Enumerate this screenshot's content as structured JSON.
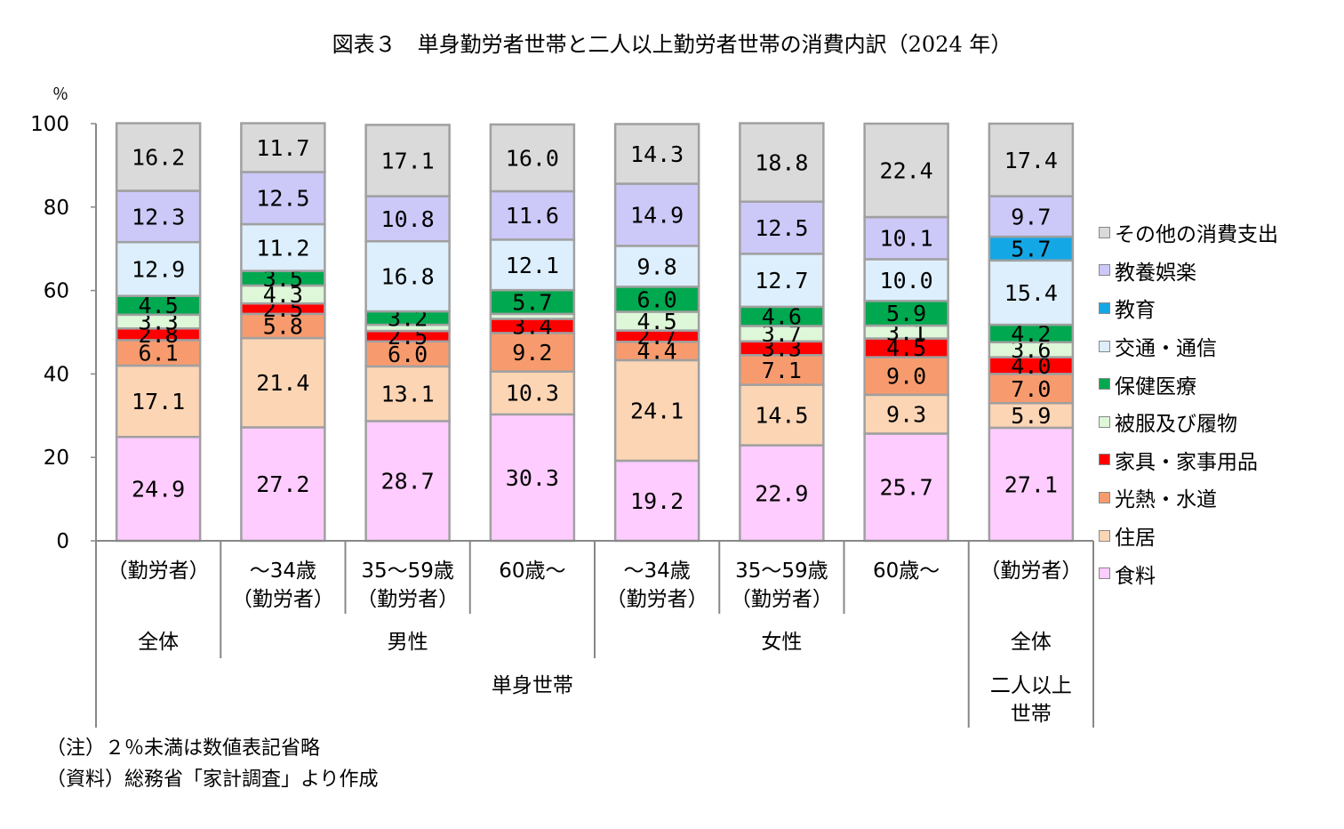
{
  "title": "図表３　単身勤労者世帯と二人以上勤労者世帯の消費内訳（2024 年）",
  "notes": {
    "note1": "（注）２％未満は数値表記省略",
    "note2": "（資料）総務省「家計調査」より作成"
  },
  "chart_data": {
    "type": "bar",
    "stacked": true,
    "title": "図表３　単身勤労者世帯と二人以上勤労者世帯の消費内訳（2024 年）",
    "ylabel": "％",
    "ylim": [
      0,
      100
    ],
    "yticks": [
      0,
      20,
      40,
      60,
      80,
      100
    ],
    "legend_position": "right",
    "categories": [
      {
        "lines": [
          "（勤労者）"
        ]
      },
      {
        "lines": [
          "～34歳",
          "（勤労者）"
        ]
      },
      {
        "lines": [
          "35～59歳",
          "（勤労者）"
        ]
      },
      {
        "lines": [
          "60歳～"
        ]
      },
      {
        "lines": [
          "～34歳",
          "（勤労者）"
        ]
      },
      {
        "lines": [
          "35～59歳",
          "（勤労者）"
        ]
      },
      {
        "lines": [
          "60歳～"
        ]
      },
      {
        "lines": [
          "（勤労者）"
        ]
      }
    ],
    "group_labels": [
      {
        "label": "全体",
        "from": 0,
        "to": 0
      },
      {
        "label": "男性",
        "from": 1,
        "to": 3
      },
      {
        "label": "女性",
        "from": 4,
        "to": 6
      },
      {
        "label": "全体",
        "from": 7,
        "to": 7
      }
    ],
    "household_labels": [
      {
        "label": "単身世帯",
        "from": 0,
        "to": 6
      },
      {
        "label": "二人以上\n世帯",
        "from": 7,
        "to": 7
      }
    ],
    "series": [
      {
        "name": "食料",
        "color": "#FFCCFF",
        "values": [
          24.9,
          27.2,
          28.7,
          30.3,
          19.2,
          22.9,
          25.7,
          27.1
        ],
        "labels": [
          "24.9",
          "27.2",
          "28.7",
          "30.3",
          "19.2",
          "22.9",
          "25.7",
          "27.1"
        ]
      },
      {
        "name": "住居",
        "color": "#FCD5B5",
        "values": [
          17.1,
          21.4,
          13.1,
          10.3,
          24.1,
          14.5,
          9.3,
          5.9
        ],
        "labels": [
          "17.1",
          "21.4",
          "13.1",
          "10.3",
          "24.1",
          "14.5",
          "9.3",
          "5.9"
        ]
      },
      {
        "name": "光熱・水道",
        "color": "#F79B6E",
        "values": [
          6.1,
          5.8,
          6.0,
          9.2,
          4.4,
          7.1,
          9.0,
          7.0
        ],
        "labels": [
          "6.1",
          "5.8",
          "6.0",
          "9.2",
          "4.4",
          "7.1",
          "9.0",
          "7.0"
        ]
      },
      {
        "name": "家具・家事用品",
        "color": "#FF0000",
        "values": [
          2.8,
          2.5,
          2.5,
          3.4,
          2.7,
          3.3,
          4.5,
          4.0
        ],
        "labels": [
          "2.8",
          "2.5",
          "2.5",
          "3.4",
          "2.7",
          "3.3",
          "4.5",
          "4.0"
        ]
      },
      {
        "name": "被服及び履物",
        "color": "#DDF7D8",
        "values": [
          3.3,
          4.3,
          1.5,
          1.2,
          4.5,
          3.7,
          3.1,
          3.6
        ],
        "labels": [
          "3.3",
          "4.3",
          "",
          "",
          "4.5",
          "3.7",
          "3.1",
          "3.6"
        ]
      },
      {
        "name": "保健医療",
        "color": "#00A84F",
        "values": [
          4.5,
          3.5,
          3.2,
          5.7,
          6.0,
          4.6,
          5.9,
          4.2
        ],
        "labels": [
          "4.5",
          "3.5",
          "3.2",
          "5.7",
          "6.0",
          "4.6",
          "5.9",
          "4.2"
        ]
      },
      {
        "name": "交通・通信",
        "color": "#DDEFFD",
        "values": [
          12.9,
          11.2,
          16.8,
          12.1,
          9.8,
          12.7,
          10.0,
          15.4
        ],
        "labels": [
          "12.9",
          "11.2",
          "16.8",
          "12.1",
          "9.8",
          "12.7",
          "10.0",
          "15.4"
        ]
      },
      {
        "name": "教育",
        "color": "#14A7E6",
        "values": [
          0,
          0,
          0,
          0,
          0,
          0,
          0,
          5.7
        ],
        "labels": [
          "",
          "",
          "",
          "",
          "",
          "",
          "",
          "5.7"
        ]
      },
      {
        "name": "教養娯楽",
        "color": "#CCC8F8",
        "values": [
          12.3,
          12.5,
          10.8,
          11.6,
          14.9,
          12.5,
          10.1,
          9.7
        ],
        "labels": [
          "12.3",
          "12.5",
          "10.8",
          "11.6",
          "14.9",
          "12.5",
          "10.1",
          "9.7"
        ]
      },
      {
        "name": "その他の消費支出",
        "color": "#DADADA",
        "values": [
          16.2,
          11.7,
          17.1,
          16.0,
          14.3,
          18.8,
          22.4,
          17.4
        ],
        "labels": [
          "16.2",
          "11.7",
          "17.1",
          "16.0",
          "14.3",
          "18.8",
          "22.4",
          "17.4"
        ]
      }
    ]
  }
}
